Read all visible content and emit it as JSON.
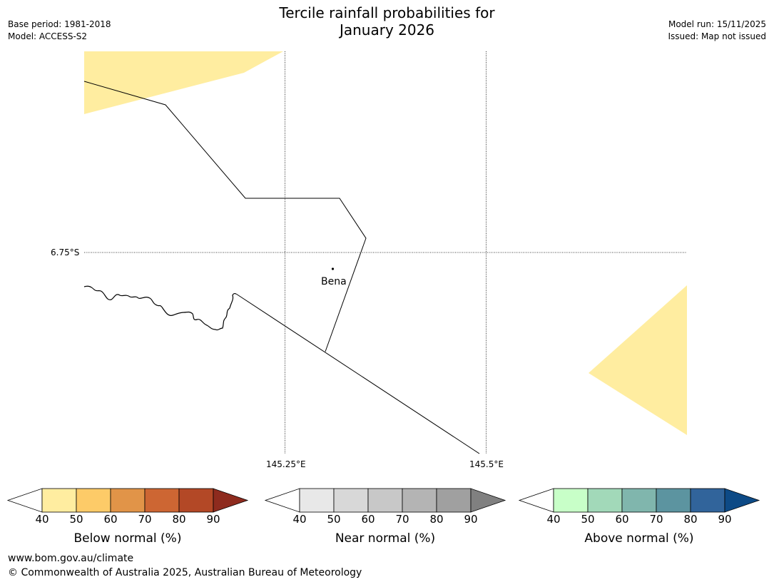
{
  "header": {
    "title_line1": "Tercile rainfall probabilities for",
    "title_line2": "January 2026",
    "base_period": "Base period: 1981-2018",
    "model": "Model: ACCESS-S2",
    "model_run": "Model run: 15/11/2025",
    "issued": "Issued: Map not issued"
  },
  "map": {
    "lat_label": "6.75°S",
    "lon_labels": [
      "145.25°E",
      "145.5°E"
    ],
    "place": "Bena",
    "shading_color": "#ffeda0"
  },
  "colorbars": [
    {
      "name": "below",
      "label": "Below normal (%)",
      "ticks": [
        "40",
        "50",
        "60",
        "70",
        "80",
        "90"
      ],
      "colors": [
        "#ffeda0",
        "#fdcb68",
        "#e19448",
        "#cd6633",
        "#b34826"
      ],
      "extend_color": "#8e2b1e"
    },
    {
      "name": "near",
      "label": "Near normal (%)",
      "ticks": [
        "40",
        "50",
        "60",
        "70",
        "80",
        "90"
      ],
      "colors": [
        "#e8e8e8",
        "#d8d8d8",
        "#c8c8c8",
        "#b4b4b4",
        "#a0a0a0"
      ],
      "extend_color": "#808080"
    },
    {
      "name": "above",
      "label": "Above normal (%)",
      "ticks": [
        "40",
        "50",
        "60",
        "70",
        "80",
        "90"
      ],
      "colors": [
        "#c8ffc8",
        "#a2d9b9",
        "#80b6ad",
        "#5c94a0",
        "#31649b"
      ],
      "extend_color": "#0d4a86"
    }
  ],
  "footer": {
    "url": "www.bom.gov.au/climate",
    "copyright": "© Commonwealth of Australia 2025, Australian Bureau of Meteorology"
  }
}
